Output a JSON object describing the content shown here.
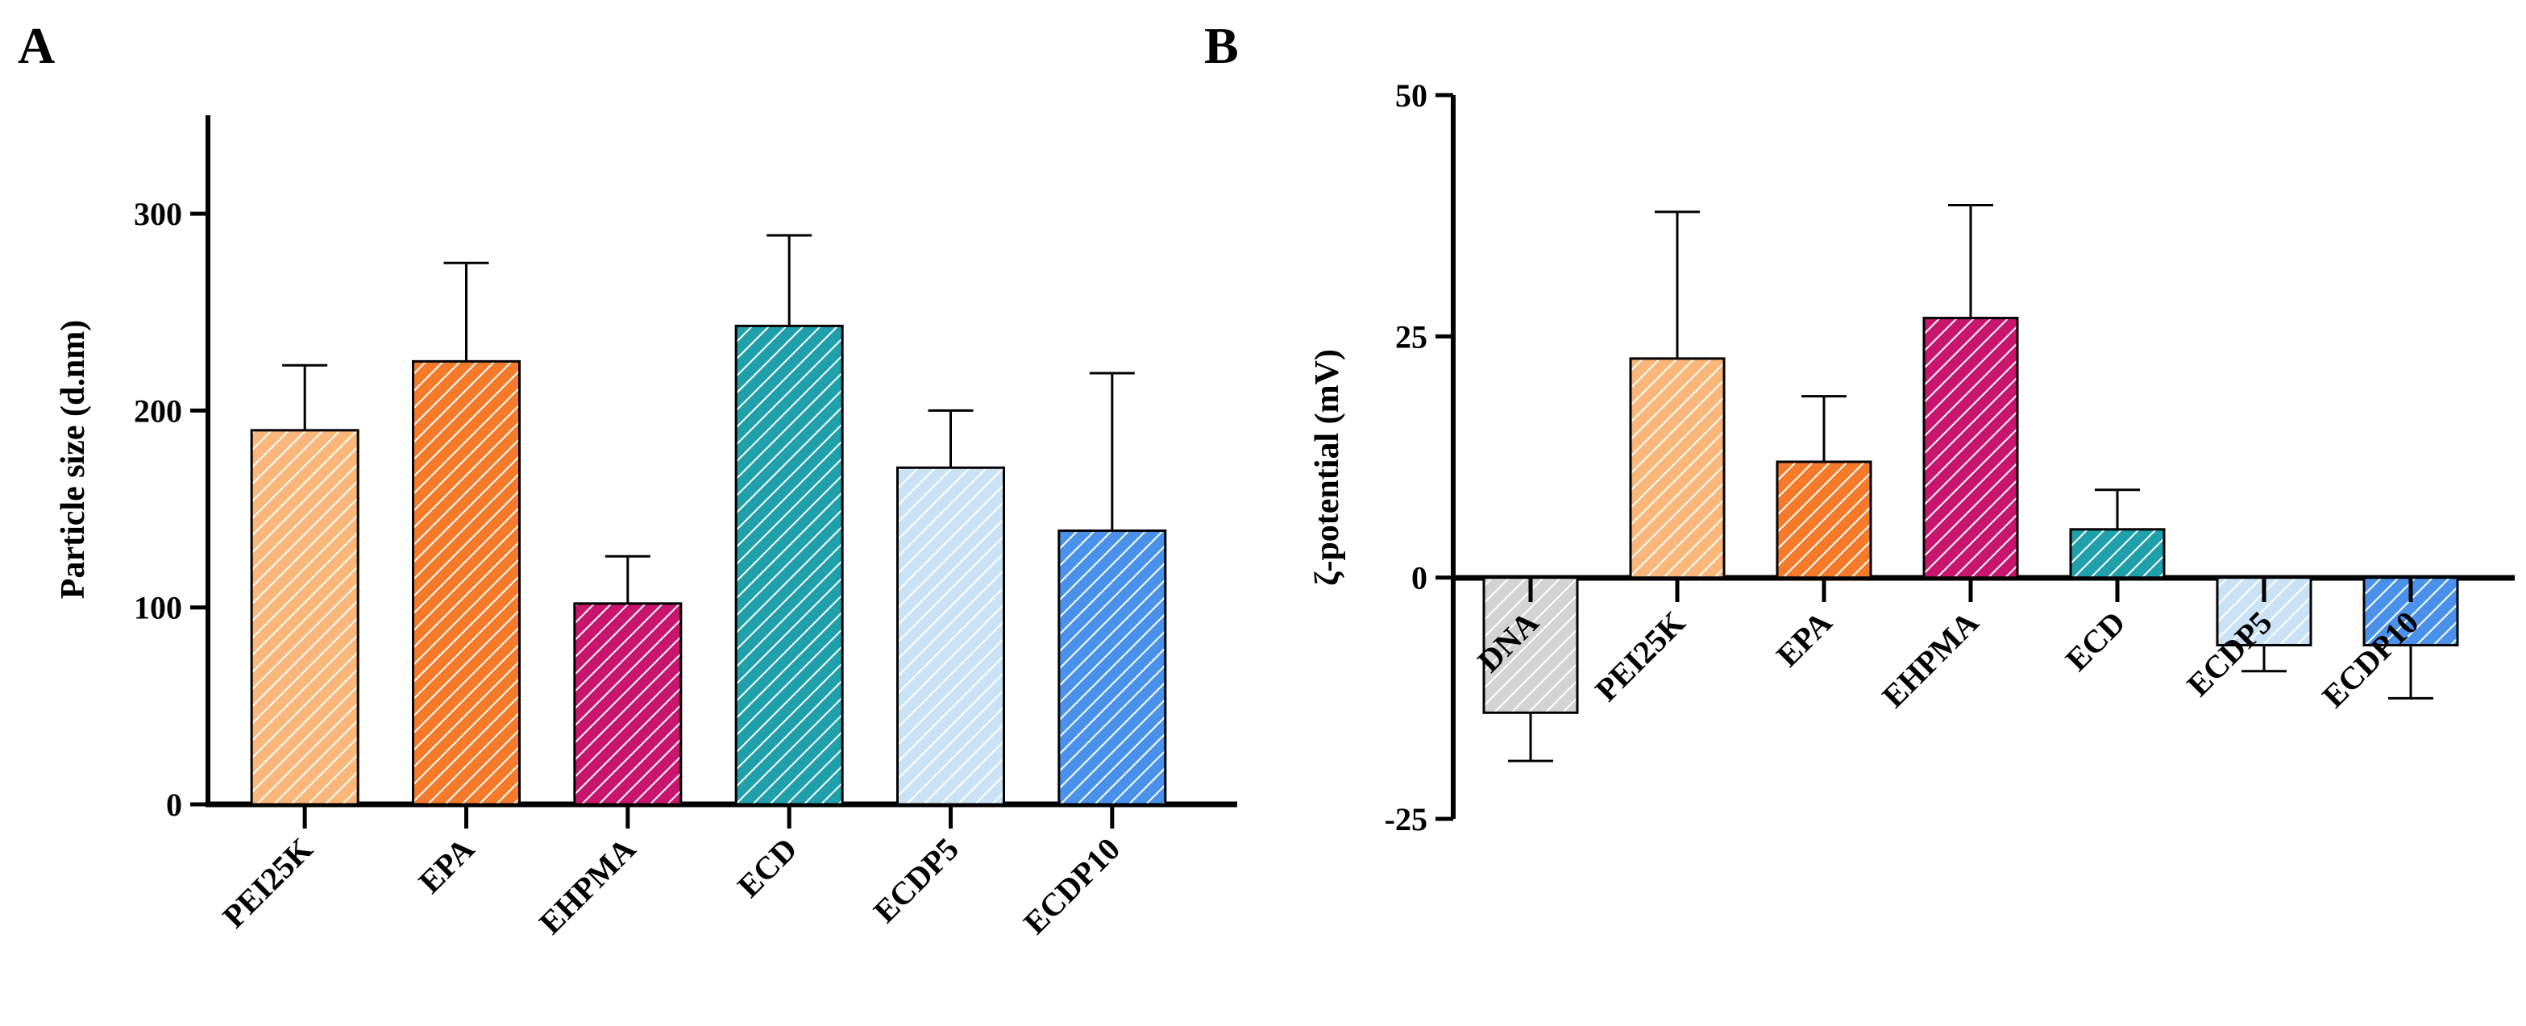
{
  "figure": {
    "panels": [
      "A",
      "B"
    ]
  },
  "chart_data": [
    {
      "panel": "A",
      "type": "bar",
      "title": "",
      "xlabel": "",
      "ylabel": "Particle size (d.nm)",
      "ylim": [
        0,
        350
      ],
      "yticks": [
        0,
        100,
        200,
        300
      ],
      "categories": [
        "PEI25K",
        "EPA",
        "EHPMA",
        "ECD",
        "ECDP5",
        "ECDP10"
      ],
      "values": [
        190,
        225,
        102,
        243,
        171,
        139
      ],
      "errors": [
        33,
        50,
        24,
        46,
        29,
        80
      ],
      "colors": [
        "#fbb779",
        "#f57a29",
        "#c8156d",
        "#1fa0aa",
        "#c9e2f6",
        "#4a91ec"
      ],
      "pattern": "diagonal-hatch",
      "grid": false,
      "legend": "none"
    },
    {
      "panel": "B",
      "type": "bar",
      "title": "",
      "xlabel": "",
      "ylabel": "ζ-potential (mV)",
      "ylim": [
        -25,
        50
      ],
      "yticks": [
        -25,
        0,
        25,
        50
      ],
      "categories": [
        "DNA",
        "PEI25K",
        "EPA",
        "EHPMA",
        "ECD",
        "ECDP5",
        "ECDP10"
      ],
      "values": [
        -14,
        22.7,
        12,
        26.9,
        5,
        -7,
        -7
      ],
      "errors": [
        5,
        15.2,
        6.8,
        11.7,
        4.1,
        2.7,
        5.5
      ],
      "colors": [
        "#d3d3d3",
        "#fbb779",
        "#f57a29",
        "#c8156d",
        "#1fa0aa",
        "#c9e2f6",
        "#4a91ec"
      ],
      "pattern": "diagonal-hatch",
      "grid": false,
      "legend": "none"
    }
  ]
}
